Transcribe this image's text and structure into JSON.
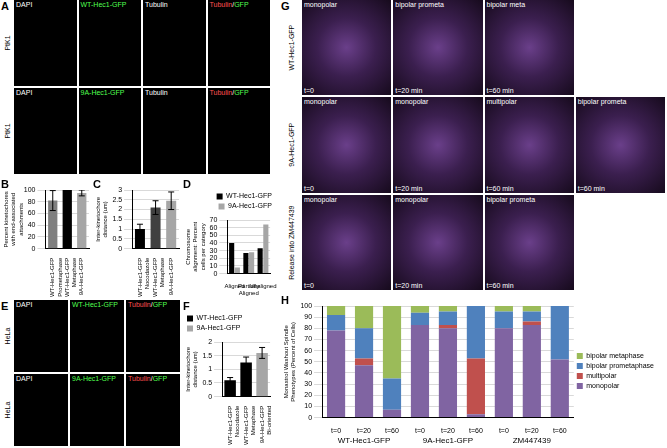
{
  "chart_data": [
    {
      "panel": "B",
      "type": "bar",
      "y_label": "Percent kinetochores with end-associated attachments",
      "categories": [
        "WT-Hec1-GFP Prometaphase",
        "WT-Hec1-GFP Metaphase",
        "9A-Hec1-GFP"
      ],
      "values": [
        82,
        100,
        95
      ],
      "errors": [
        17,
        0,
        5
      ],
      "colors": [
        "#7f7f7f",
        "#000000",
        "#a6a6a6"
      ],
      "ylim": [
        0,
        100
      ],
      "yticks": [
        0,
        20,
        40,
        60,
        80,
        100
      ],
      "grid": true
    },
    {
      "panel": "C",
      "type": "bar",
      "y_label": "Inter-kinetochore distance (um)",
      "categories": [
        "WT-Hec1-GFP Nocodazole",
        "WT-Hec1-GFP Metaphase",
        "9A-Hec1-GFP"
      ],
      "values": [
        1.0,
        2.1,
        2.45
      ],
      "errors": [
        0.25,
        0.35,
        0.45
      ],
      "colors": [
        "#000000",
        "#404040",
        "#a6a6a6"
      ],
      "ylim": [
        0,
        3
      ],
      "yticks": [
        0,
        0.5,
        1,
        1.5,
        2,
        2.5,
        3
      ],
      "grid": true
    },
    {
      "panel": "D",
      "type": "bar",
      "y_label": "Chromosome alignment: Percent cells per category",
      "categories": [
        "Aligned",
        "Partially Aligned",
        "Unaligned"
      ],
      "series": [
        {
          "name": "WT-Hec1-GFP",
          "color": "#000000",
          "values": [
            40,
            27,
            33
          ]
        },
        {
          "name": "9A-Hec1-GFP",
          "color": "#a6a6a6",
          "values": [
            8,
            28,
            64
          ]
        }
      ],
      "ylim": [
        0,
        70
      ],
      "yticks": [
        0,
        10,
        20,
        30,
        40,
        50,
        60,
        70
      ],
      "grid": true,
      "legend": "top-right"
    },
    {
      "panel": "F",
      "type": "bar",
      "y_label": "Inter-kinetochore distance (um)",
      "categories": [
        "WT-Hec1-GFP Nocodazole",
        "WT-Hec1-GFP Metaphase",
        "9A-Hec1-GFP Bi-oriented"
      ],
      "series": [
        {
          "name": "WT-Hec1-GFP",
          "color": "#000000",
          "values": [
            0.6,
            1.25,
            null
          ],
          "errors": [
            0.1,
            0.2,
            null
          ]
        },
        {
          "name": "9A-Hec1-GFP",
          "color": "#a6a6a6",
          "values": [
            null,
            null,
            1.6
          ],
          "errors": [
            null,
            null,
            0.2
          ]
        }
      ],
      "ylim": [
        0,
        2
      ],
      "yticks": [
        0,
        0.5,
        1,
        1.5,
        2
      ],
      "grid": true,
      "legend": "top-left"
    },
    {
      "panel": "H",
      "type": "bar",
      "stacked": true,
      "y_label": "Monastrol Washout Spindle Phenotypes (Percent of Cells)",
      "categories": [
        "t=0",
        "t=20",
        "t=60",
        "t=0",
        "t=20",
        "t=60",
        "t=0",
        "t=20",
        "t=60"
      ],
      "groups": [
        "WT-Hec1-GFP",
        "9A-Hec1-GFP",
        "ZM447439"
      ],
      "series": [
        {
          "name": "monopolar",
          "color": "#8064a2",
          "values": [
            78,
            47,
            7,
            83,
            80,
            3,
            80,
            83,
            52
          ]
        },
        {
          "name": "multipolar",
          "color": "#c0504d",
          "values": [
            0,
            6,
            0,
            0,
            3,
            50,
            0,
            3,
            0
          ]
        },
        {
          "name": "bipolar prometaphase",
          "color": "#4f81bd",
          "values": [
            14,
            27,
            28,
            11,
            12,
            47,
            15,
            9,
            48
          ]
        },
        {
          "name": "bipolar metaphase",
          "color": "#9bbb59",
          "values": [
            8,
            20,
            65,
            6,
            5,
            0,
            5,
            5,
            0
          ]
        }
      ],
      "ylim": [
        0,
        100
      ],
      "yticks": [
        0,
        10,
        20,
        30,
        40,
        50,
        60,
        70,
        80,
        90,
        100
      ],
      "grid": true,
      "legend": "right"
    }
  ],
  "image_panels": [
    {
      "letter": "A",
      "rows": [
        {
          "side_label": "PtK1",
          "images": [
            "DAPI",
            "WT-Hec1-GFP",
            "Tubulin",
            "Tubulin/GFP"
          ]
        },
        {
          "side_label": "PtK1",
          "images": [
            "DAPI",
            "9A-Hec1-GFP",
            "Tubulin",
            "Tubulin/GFP"
          ]
        }
      ]
    },
    {
      "letter": "E",
      "rows": [
        {
          "side_label": "HeLa",
          "images": [
            "DAPI",
            "WT-Hec1-GFP",
            "Tubulin/GFP"
          ]
        },
        {
          "side_label": "HeLa",
          "images": [
            "DAPI",
            "9A-Hec1-GFP",
            "Tubulin/GFP"
          ]
        }
      ]
    },
    {
      "letter": "G",
      "rows": [
        {
          "side_label": "WT-Hec1-GFP",
          "images": [
            {
              "label": "monopolar",
              "time": "t=0"
            },
            {
              "label": "bipolar prometa",
              "time": "t=20 min"
            },
            {
              "label": "bipolar meta",
              "time": "t=60 min"
            }
          ]
        },
        {
          "side_label": "9A-Hec1-GFP",
          "images": [
            {
              "label": "monopolar",
              "time": "t=0"
            },
            {
              "label": "monopolar",
              "time": "t=20 min"
            },
            {
              "label": "multipolar",
              "time": "t=60 min"
            },
            {
              "label": "bipolar prometa",
              "time": "t=60 min"
            }
          ]
        },
        {
          "side_label": "Release into ZM447439",
          "images": [
            {
              "label": "monopolar",
              "time": "t=0"
            },
            {
              "label": "monopolar",
              "time": "t=20 min"
            },
            {
              "label": "bipolar prometa",
              "time": "t=60 min"
            }
          ]
        }
      ]
    }
  ]
}
